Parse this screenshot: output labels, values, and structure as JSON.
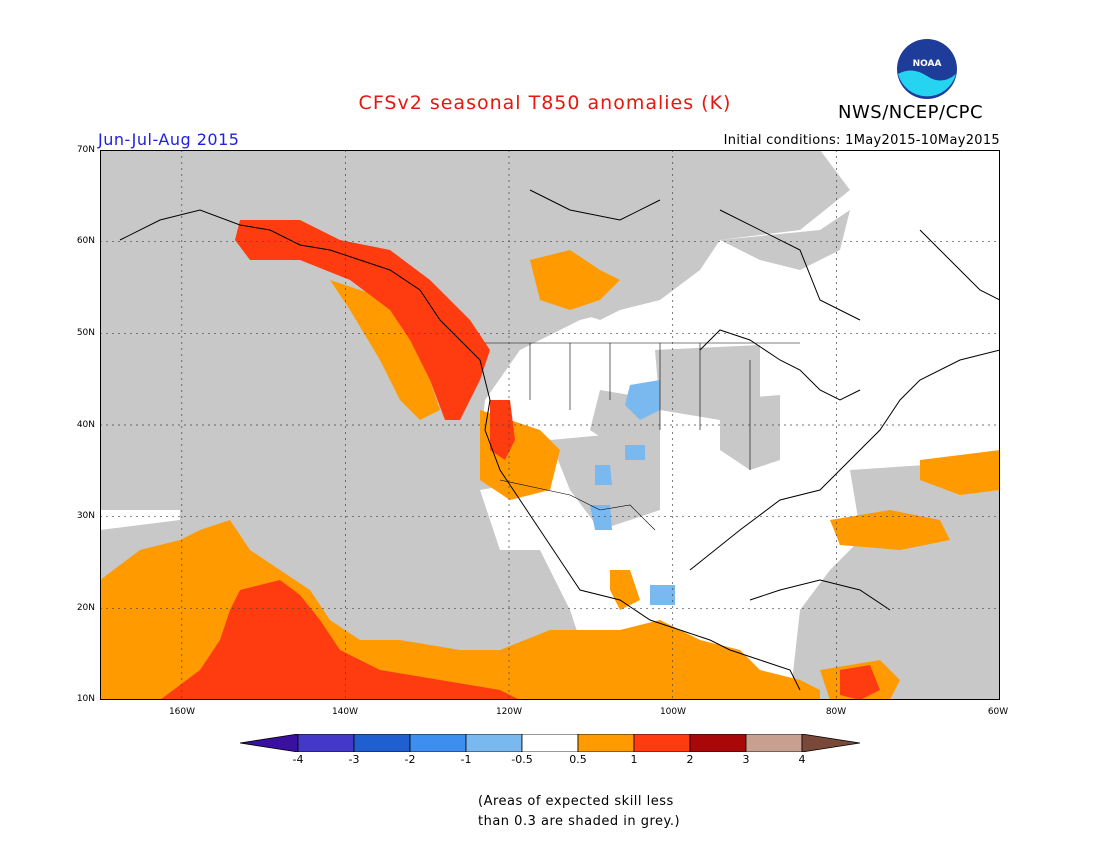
{
  "title": "CFSv2 seasonal T850 anomalies (K)",
  "organization": "NWS/NCEP/CPC",
  "logo_text": "NOAA",
  "season": "Jun-Jul-Aug 2015",
  "initial_conditions": "Initial conditions: 1May2015-10May2015",
  "lat_labels": [
    "70N",
    "60N",
    "50N",
    "40N",
    "30N",
    "20N",
    "10N"
  ],
  "lon_labels": [
    "160W",
    "140W",
    "120W",
    "100W",
    "80W",
    "60W"
  ],
  "colorbar": {
    "labels": [
      "-4",
      "-3",
      "-2",
      "-1",
      "-0.5",
      "0.5",
      "1",
      "2",
      "3",
      "4"
    ],
    "colors": [
      "#3a10a0",
      "#4438c8",
      "#1f5fd0",
      "#3c8ef0",
      "#7ab8f0",
      "#ffffff",
      "#ff9b00",
      "#ff3c10",
      "#a80808",
      "#c8a090",
      "#7a4838"
    ]
  },
  "note_line1": "(Areas of expected skill less",
  "note_line2": "than 0.3 are shaded in grey.)",
  "colors": {
    "grey": "#c8c8c8",
    "orange": "#ff9b00",
    "red": "#ff3c10",
    "lightblue": "#7ab8f0"
  }
}
